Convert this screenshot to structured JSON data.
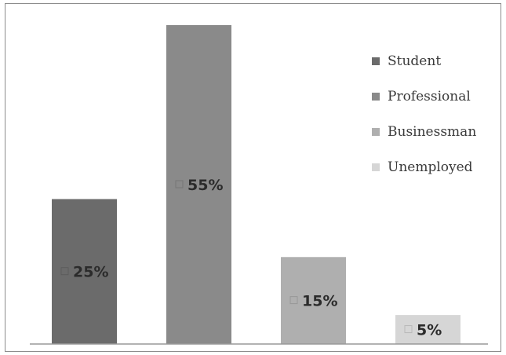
{
  "chart_data": {
    "type": "bar",
    "categories": [
      "Student",
      "Professional",
      "Businessman",
      "Unemployed"
    ],
    "values": [
      25,
      55,
      15,
      5
    ],
    "value_labels": [
      "25%",
      "55%",
      "15%",
      "5%"
    ],
    "colors": [
      "#6b6b6b",
      "#8a8a8a",
      "#afafaf",
      "#d6d6d6"
    ],
    "ylim": [
      0,
      55
    ],
    "grid": false,
    "legend": {
      "position": "top-right",
      "entries": [
        "Student",
        "Professional",
        "Businessman",
        "Unemployed"
      ]
    },
    "title": "",
    "xlabel": "",
    "ylabel": ""
  }
}
